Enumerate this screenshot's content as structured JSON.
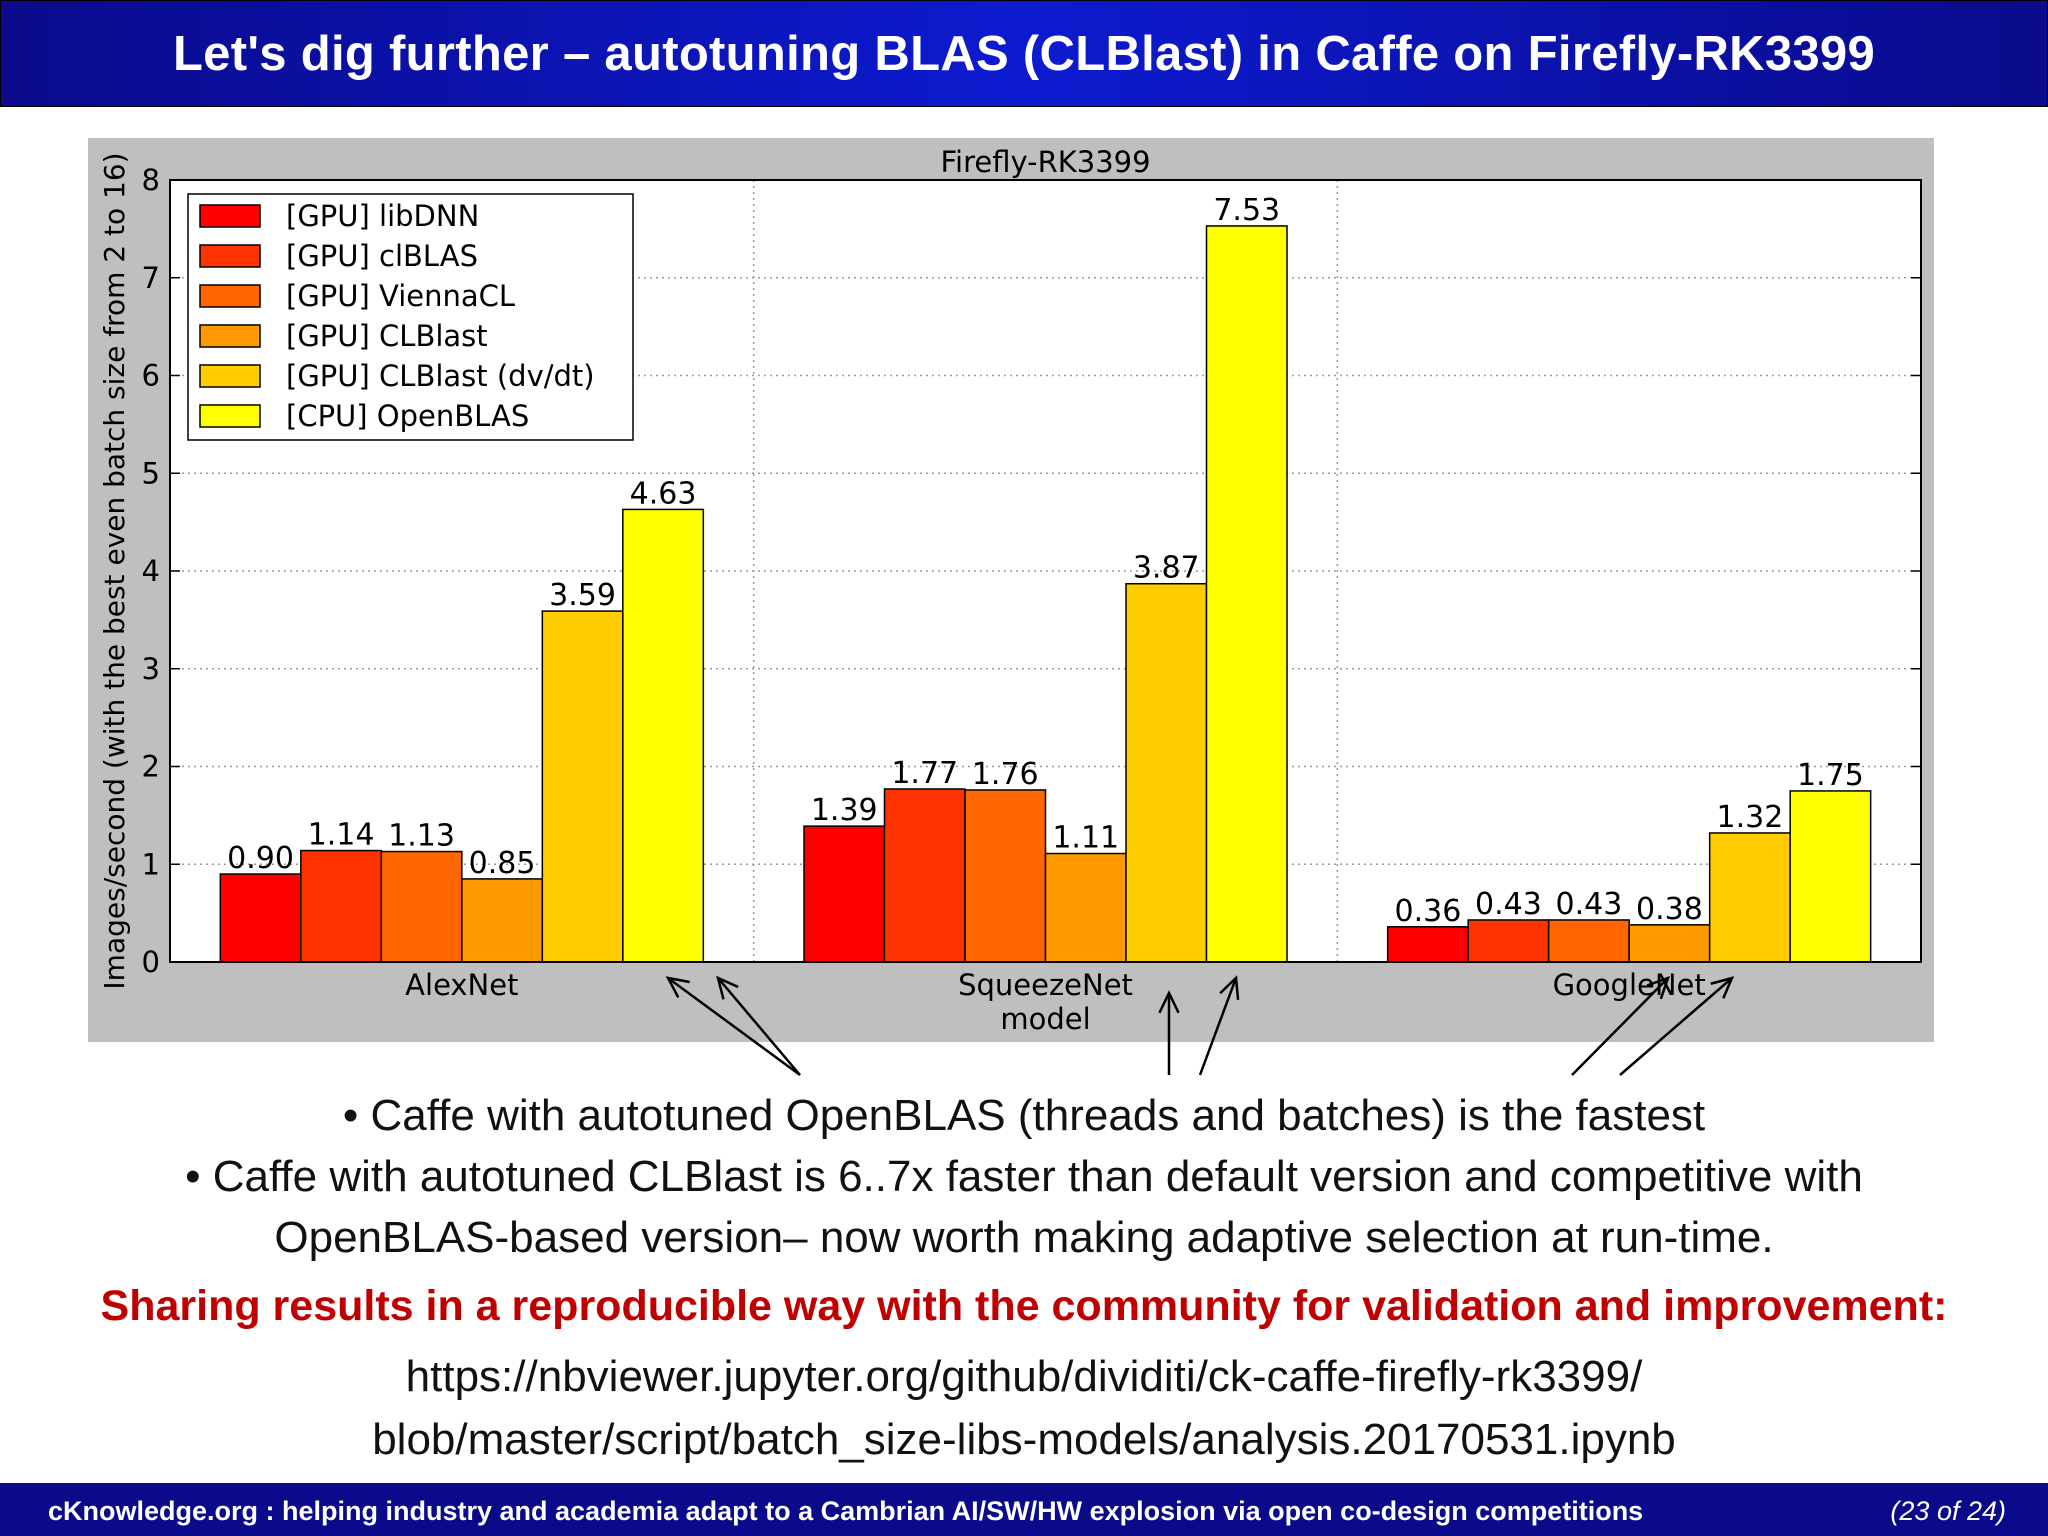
{
  "slide": {
    "title": "Let's dig further – autotuning BLAS (CLBlast) in Caffe on Firefly-RK3399",
    "bullets": [
      "• Caffe with autotuned OpenBLAS (threads and batches) is the fastest",
      "• Caffe with autotuned CLBlast is 6..7x faster than default version and competitive with",
      "OpenBLAS-based version– now worth making  adaptive selection at run-time."
    ],
    "share_text": "Sharing results in a reproducible way with the community for validation and improvement:",
    "link_lines": [
      "https://nbviewer.jupyter.org/github/dividiti/ck-caffe-firefly-rk3399/",
      "blob/master/script/batch_size-libs-models/analysis.20170531.ipynb"
    ],
    "footer_text": "cKnowledge.org : helping industry and academia adapt to a Cambrian AI/SW/HW explosion via open co-design competitions",
    "footer_page": "(23 of 24)"
  },
  "chart_data": {
    "type": "bar",
    "title": "Firefly-RK3399",
    "xlabel": "model",
    "ylabel": "Images/second (with the best even batch size from 2 to 16)",
    "ylim": [
      0,
      8
    ],
    "yticks": [
      0,
      1,
      2,
      3,
      4,
      5,
      6,
      7,
      8
    ],
    "grid": true,
    "legend_position": "top-left",
    "categories": [
      "AlexNet",
      "SqueezeNet",
      "GoogleNet"
    ],
    "series": [
      {
        "name": "[GPU] libDNN",
        "color": "#ff0000",
        "values": [
          0.9,
          1.39,
          0.36
        ],
        "labels": [
          "0.90",
          "1.39",
          "0.36"
        ]
      },
      {
        "name": "[GPU] clBLAS",
        "color": "#ff3300",
        "values": [
          1.14,
          1.77,
          0.43
        ],
        "labels": [
          "1.14",
          "1.77",
          "0.43"
        ]
      },
      {
        "name": "[GPU] ViennaCL",
        "color": "#ff6600",
        "values": [
          1.13,
          1.76,
          0.43
        ],
        "labels": [
          "1.13",
          "1.76",
          "0.43"
        ]
      },
      {
        "name": "[GPU] CLBlast",
        "color": "#ff9900",
        "values": [
          0.85,
          1.11,
          0.38
        ],
        "labels": [
          "0.85",
          "1.11",
          "0.38"
        ]
      },
      {
        "name": "[GPU] CLBlast (dv/dt)",
        "color": "#ffcc00",
        "values": [
          3.59,
          3.87,
          1.32
        ],
        "labels": [
          "3.59",
          "3.87",
          "1.32"
        ]
      },
      {
        "name": "[CPU] OpenBLAS",
        "color": "#ffff00",
        "values": [
          4.63,
          7.53,
          1.75
        ],
        "labels": [
          "4.63",
          "7.53",
          "1.75"
        ]
      }
    ]
  }
}
